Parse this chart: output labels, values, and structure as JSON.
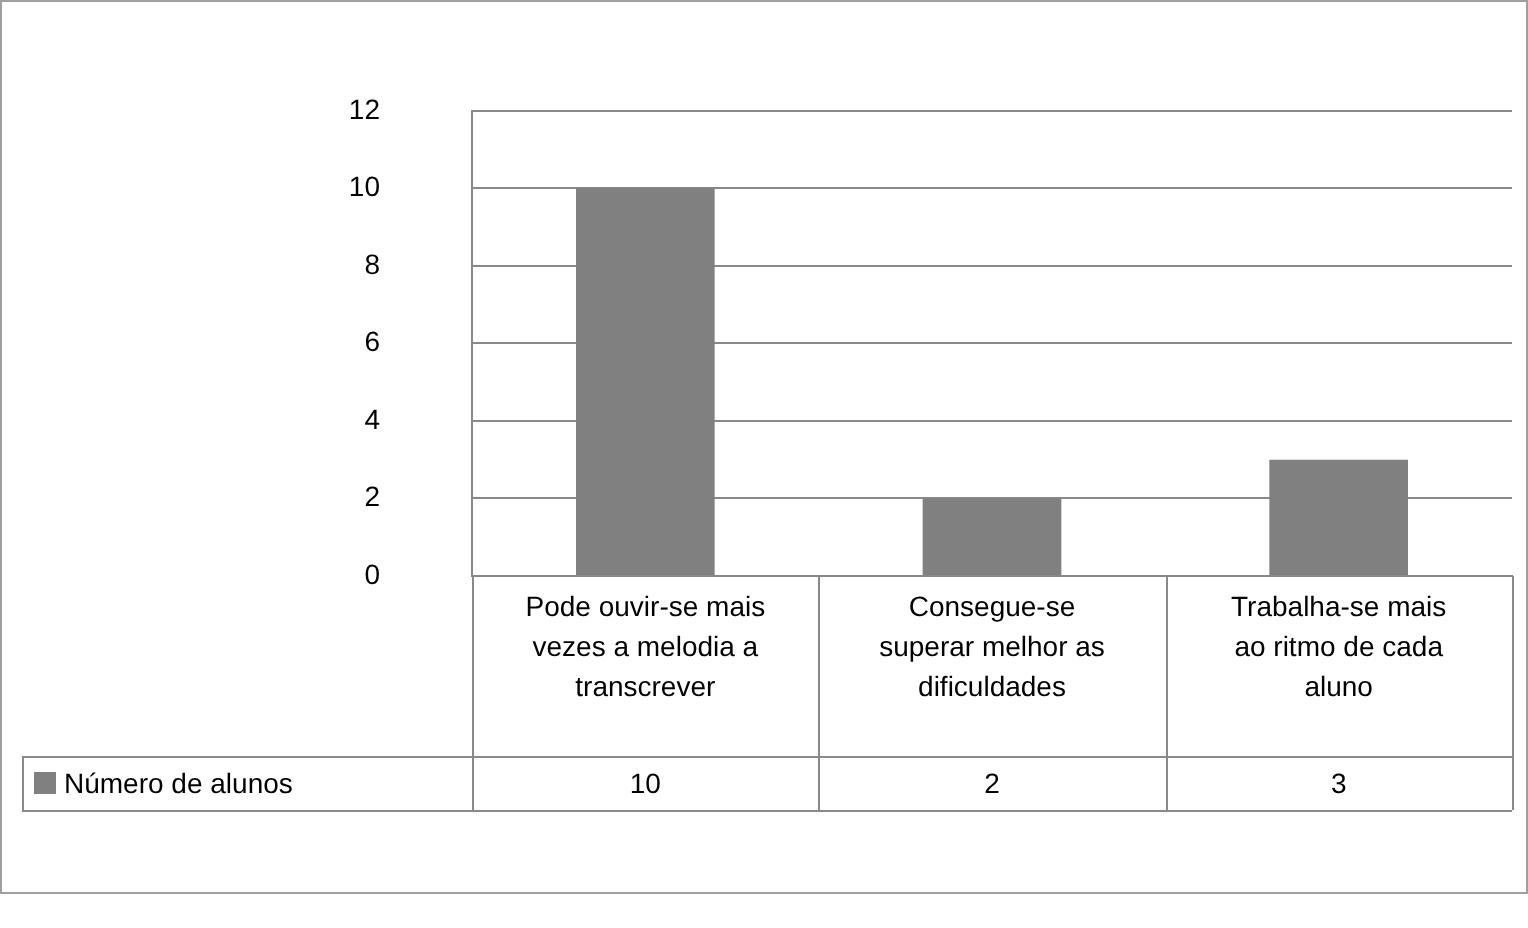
{
  "chart_data": {
    "type": "bar",
    "categories": [
      "Pode ouvir-se mais vezes a melodia a transcrever",
      "Consegue-se superar melhor as dificuldades",
      "Trabalha-se mais ao ritmo de cada aluno"
    ],
    "series": [
      {
        "name": "Número de alunos",
        "color": "#808080",
        "values": [
          10,
          2,
          3
        ]
      }
    ],
    "ylim": [
      0,
      12
    ],
    "yticks": [
      0,
      2,
      4,
      6,
      8,
      10,
      12
    ],
    "grid": "y",
    "legend": "bottom left",
    "data_labels": true
  }
}
